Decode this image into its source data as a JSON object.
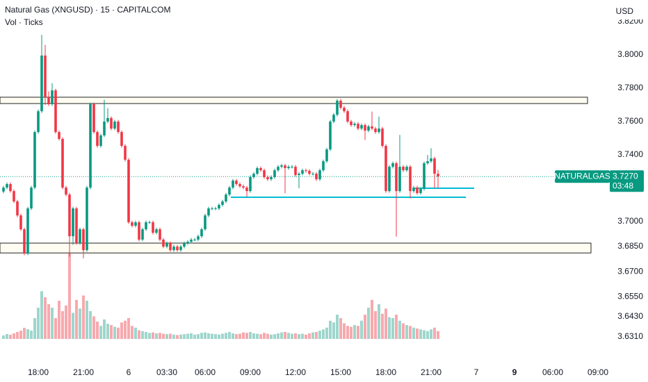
{
  "chart_data": {
    "type": "candlestick",
    "title": "Natural Gas (XNGUSD) · 15 · CAPITALCOM",
    "subtitle": "Vol · Ticks",
    "currency": "USD",
    "ylim": [
      3.6163,
      3.8329
    ],
    "yticks": [
      {
        "value": 3.82,
        "label": "3.8200"
      },
      {
        "value": 3.8,
        "label": "3.8000"
      },
      {
        "value": 3.78,
        "label": "3.7800"
      },
      {
        "value": 3.76,
        "label": "3.7600"
      },
      {
        "value": 3.74,
        "label": "3.7400"
      },
      {
        "value": 3.7,
        "label": "3.7000"
      },
      {
        "value": 3.685,
        "label": "3.6850"
      },
      {
        "value": 3.67,
        "label": "3.6700"
      },
      {
        "value": 3.655,
        "label": "3.6550"
      },
      {
        "value": 3.643,
        "label": "3.6430"
      },
      {
        "value": 3.631,
        "label": "3.6310"
      }
    ],
    "xlim": [
      -1,
      171
    ],
    "xticks": [
      {
        "value": 10,
        "label": "18:00"
      },
      {
        "value": 23,
        "label": "21:00"
      },
      {
        "value": 36,
        "label": "6"
      },
      {
        "value": 47,
        "label": "03:30"
      },
      {
        "value": 58,
        "label": "06:00"
      },
      {
        "value": 71,
        "label": "09:00"
      },
      {
        "value": 84,
        "label": "12:00"
      },
      {
        "value": 97,
        "label": "15:00"
      },
      {
        "value": 110,
        "label": "18:00"
      },
      {
        "value": 123,
        "label": "21:00"
      },
      {
        "value": 136,
        "label": "7"
      },
      {
        "value": 147,
        "label": "9",
        "bold": true
      },
      {
        "value": 158,
        "label": "06:00"
      },
      {
        "value": 171,
        "label": "09:00"
      }
    ],
    "up_color": "#089981",
    "down_color": "#f23645",
    "up_volume_color": "#9fd6cc",
    "down_volume_color": "#f7a9ae",
    "open": [
      3.718,
      3.7204,
      3.7225,
      3.7183,
      3.7121,
      3.7037,
      3.6954,
      3.6808,
      3.7079,
      3.7204,
      3.7537,
      3.7662,
      3.7996,
      3.7746,
      3.7704,
      3.7787,
      3.7537,
      3.7496,
      3.7204,
      3.7162,
      3.6912,
      3.7079,
      3.6871,
      3.6954,
      3.6829,
      3.7204,
      3.7704,
      3.7537,
      3.7454,
      3.7517,
      3.76,
      3.7621,
      3.7558,
      3.76,
      3.7537,
      3.7454,
      3.7371,
      3.6996,
      3.6975,
      3.6996,
      3.6892,
      3.6954,
      3.6996,
      3.6996,
      3.6933,
      3.6954,
      3.6892,
      3.685,
      3.6871,
      3.6829,
      3.685,
      3.6829,
      3.685,
      3.6871,
      3.6879,
      3.6892,
      3.6892,
      3.6912,
      3.6954,
      3.7037,
      3.7079,
      3.7079,
      3.7079,
      3.71,
      3.7121,
      3.7162,
      3.7204,
      3.7246,
      3.7225,
      3.7212,
      3.7204,
      3.7183,
      3.7267,
      3.7287,
      3.7321,
      3.7308,
      3.7267,
      3.7254,
      3.7267,
      3.7308,
      3.7329,
      3.7337,
      3.7321,
      3.7329,
      3.7329,
      3.7279,
      3.7287,
      3.7308,
      3.7304,
      3.7287,
      3.7287,
      3.7254,
      3.7308,
      3.7362,
      3.7433,
      3.76,
      3.7641,
      3.7725,
      3.7683,
      3.7662,
      3.76,
      3.7579,
      3.7587,
      3.7558,
      3.7579,
      3.7546,
      3.7571,
      3.7558,
      3.7537,
      3.7558,
      3.7454,
      3.7183,
      3.7329,
      3.735,
      3.7183,
      3.7329,
      3.7308,
      3.7329,
      3.7183,
      3.7204,
      3.7171,
      3.7196,
      3.735,
      3.7362,
      3.7379,
      3.7287
    ],
    "high": [
      3.7214,
      3.7235,
      3.7235,
      3.7193,
      3.7131,
      3.7047,
      3.6964,
      3.7089,
      3.7214,
      3.7547,
      3.7672,
      3.812,
      3.806,
      3.778,
      3.783,
      3.7797,
      3.7547,
      3.7506,
      3.7214,
      3.7172,
      3.7089,
      3.7089,
      3.6964,
      3.6964,
      3.7214,
      3.7714,
      3.7714,
      3.7547,
      3.7527,
      3.773,
      3.768,
      3.7631,
      3.761,
      3.761,
      3.7547,
      3.7464,
      3.7381,
      3.7006,
      3.7006,
      3.7006,
      3.6964,
      3.7006,
      3.7006,
      3.7006,
      3.6964,
      3.6964,
      3.6902,
      3.6881,
      3.6881,
      3.686,
      3.686,
      3.686,
      3.6881,
      3.6889,
      3.6902,
      3.6902,
      3.6922,
      3.6964,
      3.7047,
      3.7089,
      3.7089,
      3.7089,
      3.711,
      3.7131,
      3.7172,
      3.7214,
      3.7256,
      3.7256,
      3.7235,
      3.7222,
      3.7214,
      3.7277,
      3.7297,
      3.7331,
      3.7331,
      3.7318,
      3.7277,
      3.7277,
      3.7318,
      3.7339,
      3.7347,
      3.7347,
      3.7339,
      3.7339,
      3.7339,
      3.7297,
      3.7318,
      3.7318,
      3.7314,
      3.7297,
      3.7297,
      3.7318,
      3.7372,
      3.7443,
      3.761,
      3.7651,
      3.7735,
      3.7735,
      3.7693,
      3.7672,
      3.761,
      3.7597,
      3.7597,
      3.7589,
      3.7589,
      3.7581,
      3.766,
      3.7568,
      3.763,
      3.7568,
      3.7464,
      3.7339,
      3.736,
      3.736,
      3.752,
      3.7339,
      3.7339,
      3.7339,
      3.7214,
      3.7214,
      3.7206,
      3.736,
      3.74,
      3.744,
      3.7389,
      3.731
    ],
    "low": [
      3.717,
      3.7194,
      3.7173,
      3.7111,
      3.7027,
      3.6944,
      3.6798,
      3.6798,
      3.7069,
      3.7194,
      3.7527,
      3.7652,
      3.77,
      3.7694,
      3.7694,
      3.7527,
      3.7486,
      3.7194,
      3.7152,
      3.679,
      3.686,
      3.6861,
      3.6861,
      3.678,
      3.6819,
      3.7194,
      3.7527,
      3.7444,
      3.7444,
      3.7507,
      3.759,
      3.7548,
      3.7548,
      3.7527,
      3.7444,
      3.7361,
      3.6986,
      3.6965,
      3.6965,
      3.6882,
      3.6882,
      3.6944,
      3.6986,
      3.6923,
      3.6923,
      3.6882,
      3.684,
      3.684,
      3.6819,
      3.6819,
      3.6819,
      3.6819,
      3.684,
      3.6861,
      3.6869,
      3.6882,
      3.6882,
      3.6902,
      3.6944,
      3.7027,
      3.7069,
      3.7069,
      3.7069,
      3.709,
      3.7111,
      3.7152,
      3.7194,
      3.7215,
      3.7202,
      3.7194,
      3.715,
      3.7173,
      3.7257,
      3.7277,
      3.7298,
      3.7257,
      3.7244,
      3.7244,
      3.7257,
      3.7298,
      3.7319,
      3.717,
      3.7311,
      3.7319,
      3.7269,
      3.72,
      3.7277,
      3.7294,
      3.7277,
      3.7277,
      3.7244,
      3.7244,
      3.7298,
      3.7352,
      3.7423,
      3.759,
      3.7631,
      3.7673,
      3.7652,
      3.759,
      3.7569,
      3.7569,
      3.7548,
      3.7548,
      3.749,
      3.7536,
      3.7548,
      3.7527,
      3.7527,
      3.7444,
      3.7173,
      3.7173,
      3.7319,
      3.691,
      3.7173,
      3.7298,
      3.7298,
      3.714,
      3.7173,
      3.7161,
      3.7161,
      3.7186,
      3.734,
      3.7352,
      3.72,
      3.72
    ],
    "close": [
      3.7204,
      3.7225,
      3.7183,
      3.7121,
      3.7037,
      3.6954,
      3.6808,
      3.7079,
      3.7204,
      3.7537,
      3.7662,
      3.7996,
      3.7746,
      3.7704,
      3.7787,
      3.7537,
      3.7496,
      3.7204,
      3.7162,
      3.6912,
      3.7079,
      3.6871,
      3.6954,
      3.6829,
      3.7204,
      3.7704,
      3.7537,
      3.7454,
      3.7517,
      3.76,
      3.7621,
      3.7558,
      3.76,
      3.7537,
      3.7454,
      3.7371,
      3.6996,
      3.6975,
      3.6996,
      3.6892,
      3.6954,
      3.6996,
      3.6996,
      3.6933,
      3.6954,
      3.6892,
      3.685,
      3.6871,
      3.6829,
      3.685,
      3.6829,
      3.685,
      3.6871,
      3.6879,
      3.6892,
      3.6892,
      3.6912,
      3.6954,
      3.7037,
      3.7079,
      3.7079,
      3.7079,
      3.71,
      3.7121,
      3.7162,
      3.7204,
      3.7246,
      3.7225,
      3.7212,
      3.7204,
      3.7183,
      3.7267,
      3.7287,
      3.7321,
      3.7308,
      3.7267,
      3.7254,
      3.7267,
      3.7308,
      3.7329,
      3.7337,
      3.7321,
      3.7329,
      3.7329,
      3.7279,
      3.7287,
      3.7308,
      3.7304,
      3.7287,
      3.7287,
      3.7254,
      3.7308,
      3.7362,
      3.7433,
      3.76,
      3.7641,
      3.7725,
      3.7683,
      3.7662,
      3.76,
      3.7579,
      3.7587,
      3.7558,
      3.7579,
      3.7546,
      3.7571,
      3.7558,
      3.7537,
      3.7558,
      3.7454,
      3.7183,
      3.7329,
      3.735,
      3.7183,
      3.7329,
      3.7308,
      3.7329,
      3.7183,
      3.7204,
      3.7171,
      3.7196,
      3.735,
      3.7362,
      3.7379,
      3.7287,
      3.727
    ],
    "vlim": [
      0,
      2000
    ],
    "volume": [
      80,
      112,
      96,
      128,
      160,
      192,
      256,
      224,
      192,
      480,
      720,
      1100,
      960,
      800,
      720,
      480,
      880,
      640,
      770,
      1970,
      600,
      900,
      700,
      1000,
      880,
      640,
      520,
      400,
      300,
      450,
      350,
      320,
      280,
      260,
      380,
      420,
      480,
      300,
      260,
      200,
      180,
      160,
      140,
      150,
      130,
      140,
      120,
      110,
      120,
      100,
      90,
      100,
      110,
      120,
      130,
      100,
      110,
      140,
      150,
      130,
      120,
      110,
      100,
      120,
      140,
      160,
      130,
      110,
      120,
      150,
      140,
      160,
      130,
      120,
      110,
      140,
      120,
      100,
      110,
      130,
      150,
      160,
      140,
      120,
      130,
      110,
      120,
      100,
      130,
      150,
      160,
      190,
      220,
      260,
      420,
      380,
      560,
      480,
      360,
      300,
      280,
      320,
      300,
      420,
      560,
      720,
      900,
      640,
      800,
      580,
      700,
      500,
      480,
      560,
      420,
      360,
      320,
      300,
      260,
      240,
      220,
      200,
      180,
      220,
      260,
      180
    ],
    "zones": [
      {
        "top": 3.7746,
        "bottom": 3.7708,
        "start": -1,
        "end": 168
      },
      {
        "top": 3.6871,
        "bottom": 3.6812,
        "start": -1,
        "end": 169
      }
    ],
    "levels": [
      {
        "value": 3.7146,
        "start": 65.4,
        "end": 133,
        "color": "#00bcd4"
      },
      {
        "value": 3.72,
        "start": 118.4,
        "end": 135.4,
        "color": "#00bcd4"
      }
    ],
    "price_tag": {
      "name": "NATURALGAS",
      "value": 3.727,
      "label": "3.7270",
      "countdown": "03:48"
    }
  }
}
